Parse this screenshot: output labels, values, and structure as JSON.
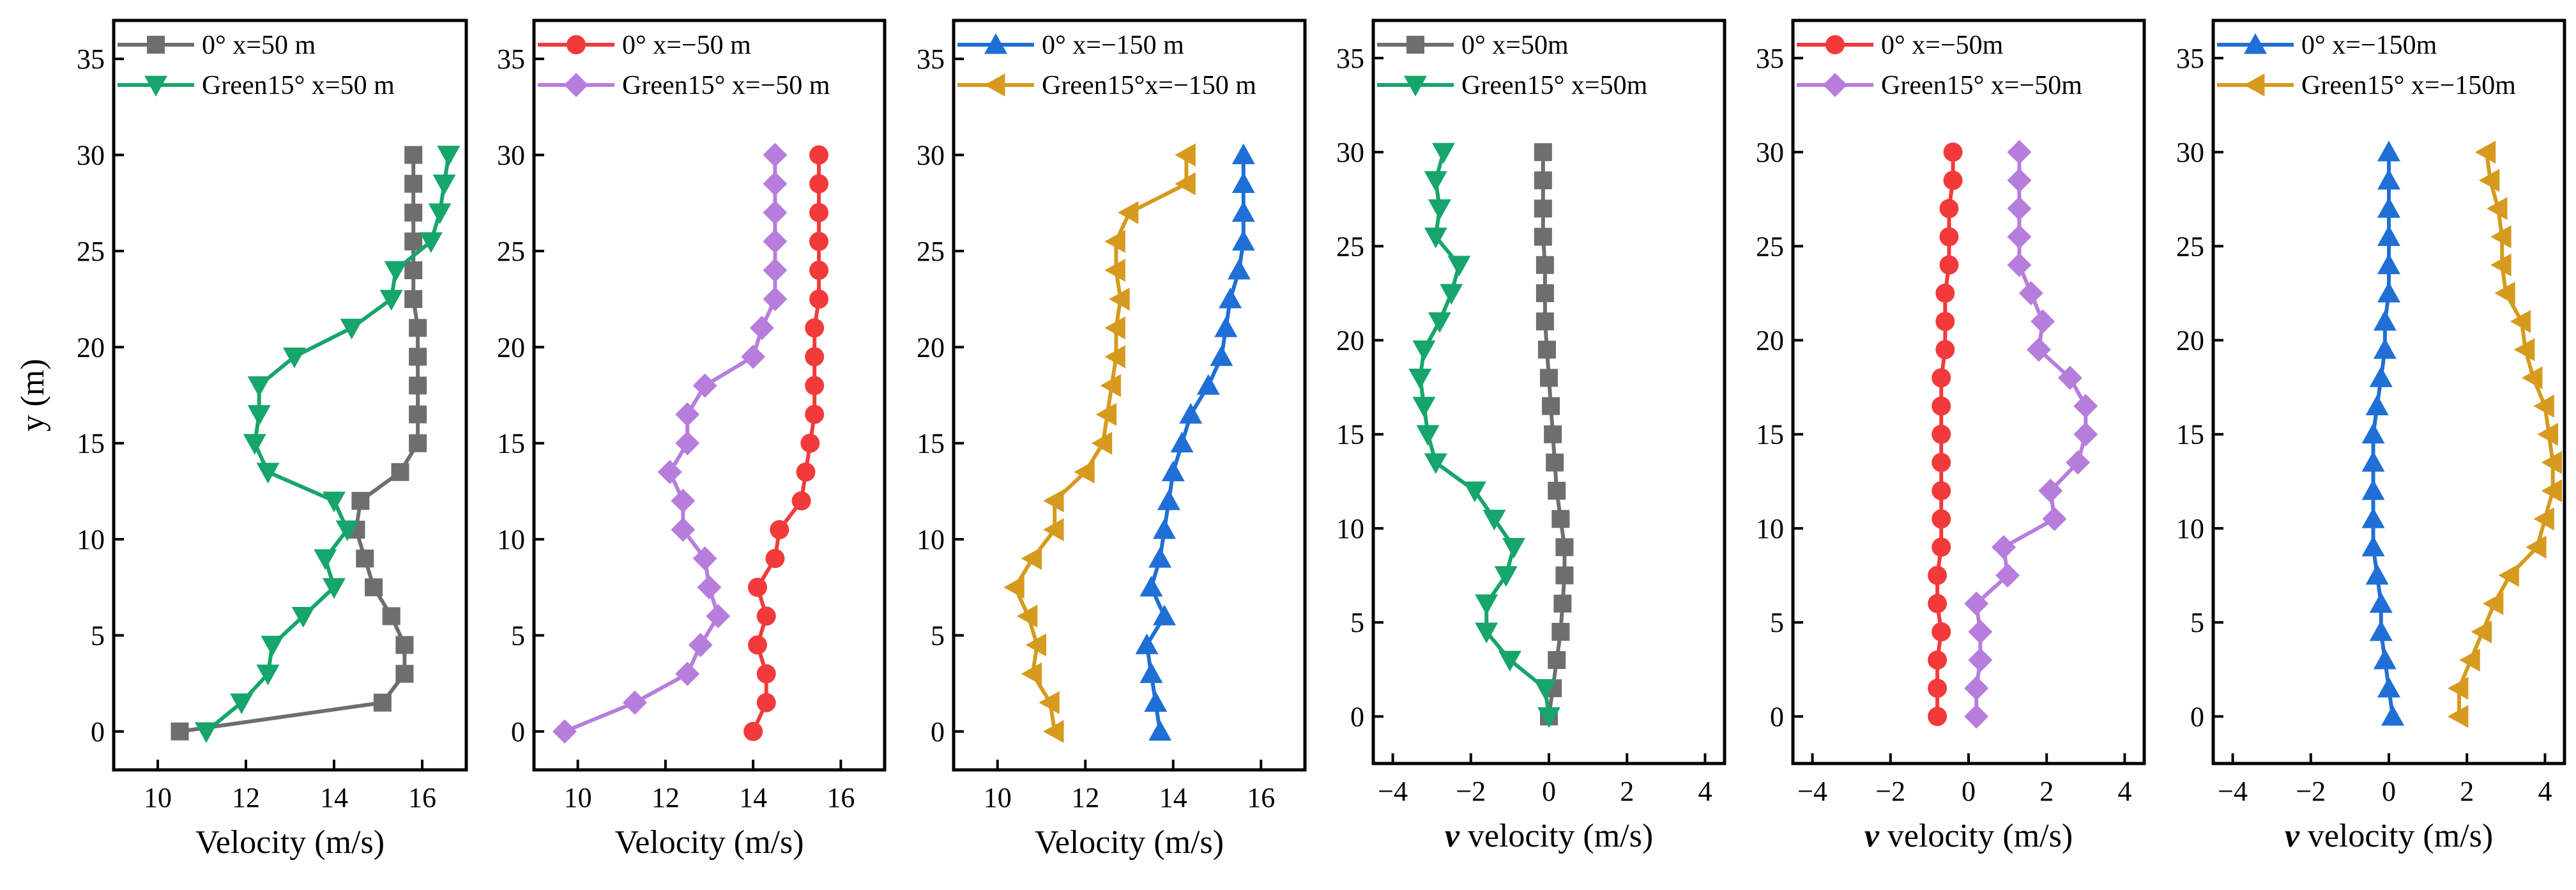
{
  "colors": {
    "gray": "#6e6e6e",
    "green": "#16a56b",
    "red": "#f23a3a",
    "violet": "#b77ddc",
    "blue": "#1f6fd6",
    "gold": "#d69a1e"
  },
  "chart_data": [
    {
      "type": "line",
      "xlabel": "Velocity (m/s)",
      "ylabel": "y (m)",
      "xlim": [
        9,
        17
      ],
      "ylim": [
        -2,
        37
      ],
      "xticks": [
        "10",
        "12",
        "14",
        "16"
      ],
      "yticks": [
        "0",
        "5",
        "10",
        "15",
        "20",
        "25",
        "30",
        "35"
      ],
      "legend_position": "top-left",
      "series": [
        {
          "name": "0° x=50 m",
          "color": "gray",
          "marker": "square",
          "y": [
            0,
            1.5,
            3,
            4.5,
            6,
            7.5,
            9,
            10.5,
            12,
            13.5,
            15,
            16.5,
            18,
            19.5,
            21,
            22.5,
            24,
            25.5,
            27,
            28.5,
            30
          ],
          "values": [
            10.5,
            15.1,
            15.6,
            15.6,
            15.3,
            14.9,
            14.7,
            14.5,
            14.6,
            15.5,
            15.9,
            15.9,
            15.9,
            15.9,
            15.9,
            15.8,
            15.8,
            15.8,
            15.8,
            15.8,
            15.8
          ]
        },
        {
          "name": "Green15° x=50 m",
          "color": "green",
          "marker": "triangle-down",
          "y": [
            0,
            1.5,
            3,
            4.5,
            6,
            7.5,
            9,
            10.5,
            12,
            13.5,
            15,
            16.5,
            18,
            19.5,
            21,
            22.5,
            24,
            25.5,
            27,
            28.5,
            30
          ],
          "values": [
            11.1,
            11.9,
            12.5,
            12.6,
            13.3,
            14.0,
            13.8,
            14.3,
            14.0,
            12.5,
            12.2,
            12.3,
            12.3,
            13.1,
            14.4,
            15.3,
            15.4,
            16.2,
            16.4,
            16.5,
            16.6
          ]
        }
      ]
    },
    {
      "type": "line",
      "xlabel": "Velocity (m/s)",
      "ylabel": "",
      "xlim": [
        9,
        17
      ],
      "ylim": [
        -2,
        37
      ],
      "xticks": [
        "10",
        "12",
        "14",
        "16"
      ],
      "yticks": [
        "0",
        "5",
        "10",
        "15",
        "20",
        "25",
        "30",
        "35"
      ],
      "legend_position": "top-left",
      "series": [
        {
          "name": "0° x=−50 m",
          "color": "red",
          "marker": "circle",
          "y": [
            0,
            1.5,
            3,
            4.5,
            6,
            7.5,
            9,
            10.5,
            12,
            13.5,
            15,
            16.5,
            18,
            19.5,
            21,
            22.5,
            24,
            25.5,
            27,
            28.5,
            30
          ],
          "values": [
            14.0,
            14.3,
            14.3,
            14.1,
            14.3,
            14.1,
            14.5,
            14.6,
            15.1,
            15.2,
            15.3,
            15.4,
            15.4,
            15.4,
            15.4,
            15.5,
            15.5,
            15.5,
            15.5,
            15.5,
            15.5
          ]
        },
        {
          "name": "Green15° x=−50 m",
          "color": "violet",
          "marker": "diamond",
          "y": [
            0,
            1.5,
            3,
            4.5,
            6,
            7.5,
            9,
            10.5,
            12,
            13.5,
            15,
            16.5,
            18,
            19.5,
            21,
            22.5,
            24,
            25.5,
            27,
            28.5,
            30
          ],
          "values": [
            9.7,
            11.3,
            12.5,
            12.8,
            13.2,
            13.0,
            12.9,
            12.4,
            12.4,
            12.1,
            12.5,
            12.5,
            12.9,
            14.0,
            14.2,
            14.5,
            14.5,
            14.5,
            14.5,
            14.5,
            14.5
          ]
        }
      ]
    },
    {
      "type": "line",
      "xlabel": "Velocity (m/s)",
      "ylabel": "",
      "xlim": [
        9,
        17
      ],
      "ylim": [
        -2,
        37
      ],
      "xticks": [
        "10",
        "12",
        "14",
        "16"
      ],
      "yticks": [
        "0",
        "5",
        "10",
        "15",
        "20",
        "25",
        "30",
        "35"
      ],
      "legend_position": "top-left",
      "series": [
        {
          "name": "0° x=−150 m",
          "color": "blue",
          "marker": "triangle-up",
          "y": [
            0,
            1.5,
            3,
            4.5,
            6,
            7.5,
            9,
            10.5,
            12,
            13.5,
            15,
            16.5,
            18,
            19.5,
            21,
            22.5,
            24,
            25.5,
            27,
            28.5,
            30
          ],
          "values": [
            13.7,
            13.6,
            13.5,
            13.4,
            13.8,
            13.5,
            13.7,
            13.8,
            13.9,
            14.0,
            14.2,
            14.4,
            14.8,
            15.1,
            15.2,
            15.3,
            15.5,
            15.6,
            15.6,
            15.6,
            15.6
          ]
        },
        {
          "name": "Green15°x=−150 m",
          "color": "gold",
          "marker": "triangle-left",
          "y": [
            0,
            1.5,
            3,
            4.5,
            6,
            7.5,
            9,
            10.5,
            12,
            13.5,
            15,
            16.5,
            18,
            19.5,
            21,
            22.5,
            24,
            25.5,
            27,
            28.5,
            30
          ],
          "values": [
            11.3,
            11.2,
            10.8,
            10.9,
            10.7,
            10.4,
            10.8,
            11.3,
            11.3,
            12.0,
            12.4,
            12.5,
            12.6,
            12.7,
            12.7,
            12.8,
            12.7,
            12.7,
            13.0,
            14.3,
            14.3
          ]
        }
      ]
    },
    {
      "type": "line",
      "xlabel_italic": "v",
      "xlabel": " velocity (m/s)",
      "ylabel": "",
      "xlim": [
        -4.5,
        4.5
      ],
      "ylim": [
        -2.5,
        37
      ],
      "xticks": [
        "−4",
        "−2",
        "0",
        "2",
        "4"
      ],
      "yticks": [
        "0",
        "5",
        "10",
        "15",
        "20",
        "25",
        "30",
        "35"
      ],
      "legend_position": "top-left",
      "series": [
        {
          "name": "0° x=50m",
          "color": "gray",
          "marker": "square",
          "y": [
            0,
            1.5,
            3,
            4.5,
            6,
            7.5,
            9,
            10.5,
            12,
            13.5,
            15,
            16.5,
            18,
            19.5,
            21,
            22.5,
            24,
            25.5,
            27,
            28.5,
            30
          ],
          "values": [
            0.0,
            0.1,
            0.2,
            0.3,
            0.35,
            0.4,
            0.4,
            0.3,
            0.2,
            0.15,
            0.1,
            0.05,
            0.0,
            -0.05,
            -0.1,
            -0.1,
            -0.1,
            -0.15,
            -0.15,
            -0.15,
            -0.15
          ]
        },
        {
          "name": "Green15° x=50m",
          "color": "green",
          "marker": "triangle-down",
          "y": [
            0,
            1.5,
            3,
            4.5,
            6,
            7.5,
            9,
            10.5,
            12,
            13.5,
            15,
            16.5,
            18,
            19.5,
            21,
            22.5,
            24,
            25.5,
            27,
            28.5,
            30
          ],
          "values": [
            0.0,
            -0.1,
            -1.0,
            -1.6,
            -1.6,
            -1.1,
            -0.9,
            -1.4,
            -1.9,
            -2.9,
            -3.1,
            -3.2,
            -3.3,
            -3.2,
            -2.8,
            -2.5,
            -2.3,
            -2.9,
            -2.8,
            -2.9,
            -2.7
          ]
        }
      ]
    },
    {
      "type": "line",
      "xlabel_italic": "v",
      "xlabel": " velocity (m/s)",
      "ylabel": "",
      "xlim": [
        -4.5,
        4.5
      ],
      "ylim": [
        -2.5,
        37
      ],
      "xticks": [
        "−4",
        "−2",
        "0",
        "2",
        "4"
      ],
      "yticks": [
        "0",
        "5",
        "10",
        "15",
        "20",
        "25",
        "30",
        "35"
      ],
      "legend_position": "top-left",
      "series": [
        {
          "name": "0° x=−50m",
          "color": "red",
          "marker": "circle",
          "y": [
            0,
            1.5,
            3,
            4.5,
            6,
            7.5,
            9,
            10.5,
            12,
            13.5,
            15,
            16.5,
            18,
            19.5,
            21,
            22.5,
            24,
            25.5,
            27,
            28.5,
            30
          ],
          "values": [
            -0.8,
            -0.8,
            -0.8,
            -0.7,
            -0.8,
            -0.8,
            -0.7,
            -0.7,
            -0.7,
            -0.7,
            -0.7,
            -0.7,
            -0.7,
            -0.6,
            -0.6,
            -0.6,
            -0.5,
            -0.5,
            -0.5,
            -0.4,
            -0.4
          ]
        },
        {
          "name": "Green15° x=−50m",
          "color": "violet",
          "marker": "diamond",
          "y": [
            0,
            1.5,
            3,
            4.5,
            6,
            7.5,
            9,
            10.5,
            12,
            13.5,
            15,
            16.5,
            18,
            19.5,
            21,
            22.5,
            24,
            25.5,
            27,
            28.5,
            30
          ],
          "values": [
            0.2,
            0.2,
            0.3,
            0.3,
            0.2,
            1.0,
            0.9,
            2.2,
            2.1,
            2.8,
            3.0,
            3.0,
            2.6,
            1.8,
            1.9,
            1.6,
            1.3,
            1.3,
            1.3,
            1.3,
            1.3
          ]
        }
      ]
    },
    {
      "type": "line",
      "xlabel_italic": "v",
      "xlabel": " velocity (m/s)",
      "ylabel": "",
      "xlim": [
        -4.5,
        4.5
      ],
      "ylim": [
        -2.5,
        37
      ],
      "xticks": [
        "−4",
        "−2",
        "0",
        "2",
        "4"
      ],
      "yticks": [
        "0",
        "5",
        "10",
        "15",
        "20",
        "25",
        "30",
        "35"
      ],
      "legend_position": "top-left",
      "series": [
        {
          "name": "0° x=−150m",
          "color": "blue",
          "marker": "triangle-up",
          "y": [
            0,
            1.5,
            3,
            4.5,
            6,
            7.5,
            9,
            10.5,
            12,
            13.5,
            15,
            16.5,
            18,
            19.5,
            21,
            22.5,
            24,
            25.5,
            27,
            28.5,
            30
          ],
          "values": [
            0.1,
            0.0,
            -0.1,
            -0.2,
            -0.2,
            -0.3,
            -0.4,
            -0.4,
            -0.4,
            -0.4,
            -0.4,
            -0.3,
            -0.2,
            -0.1,
            -0.1,
            0.0,
            0.0,
            0.0,
            0.0,
            0.0,
            0.0
          ]
        },
        {
          "name": "Green15° x=−150m",
          "color": "gold",
          "marker": "triangle-left",
          "y": [
            0,
            1.5,
            3,
            4.5,
            6,
            7.5,
            9,
            10.5,
            12,
            13.5,
            15,
            16.5,
            18,
            19.5,
            21,
            22.5,
            24,
            25.5,
            27,
            28.5,
            30
          ],
          "values": [
            1.8,
            1.8,
            2.1,
            2.4,
            2.7,
            3.1,
            3.8,
            4.0,
            4.2,
            4.2,
            4.1,
            4.0,
            3.7,
            3.5,
            3.4,
            3.0,
            2.9,
            2.9,
            2.8,
            2.6,
            2.5
          ]
        }
      ]
    }
  ]
}
